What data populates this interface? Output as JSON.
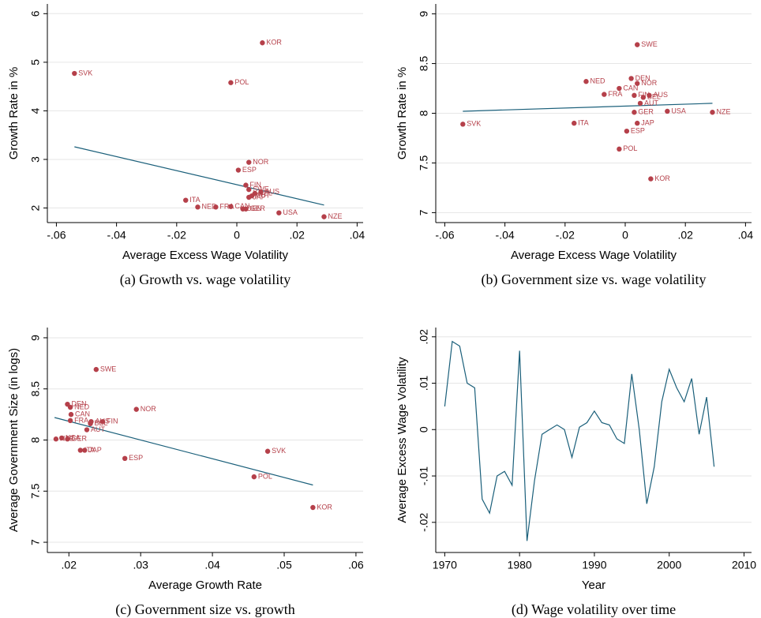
{
  "chart_data": [
    {
      "type": "scatter",
      "caption": "(a) Growth vs. wage volatility",
      "xlabel": "Average Excess Wage Volatility",
      "ylabel": "Growth Rate in %",
      "xlim": [
        -0.063,
        0.042
      ],
      "ylim": [
        1.7,
        6.2
      ],
      "xticks": [
        {
          "value": -0.06,
          "label": "-.06"
        },
        {
          "value": -0.04,
          "label": "-.04"
        },
        {
          "value": -0.02,
          "label": "-.02"
        },
        0,
        {
          "value": 0.02,
          "label": ".02"
        },
        {
          "value": 0.04,
          "label": ".04"
        }
      ],
      "yticks": [
        2,
        3,
        4,
        5,
        6
      ],
      "grid": true,
      "color": "#b5404a",
      "labels": [
        "KOR",
        "SVK",
        "POL",
        "NOR",
        "ESP",
        "FIN",
        "SWE",
        "AUS",
        "BEL",
        "AUT",
        "JAP",
        "ITA",
        "CAN",
        "FRA",
        "NED",
        "GER",
        "DEN",
        "USA",
        "NZE"
      ],
      "x": [
        0.0085,
        -0.054,
        -0.002,
        0.004,
        0.0005,
        0.003,
        0.004,
        0.008,
        0.006,
        0.005,
        0.004,
        -0.017,
        -0.002,
        -0.007,
        -0.013,
        0.003,
        0.002,
        0.014,
        0.029
      ],
      "values": [
        5.4,
        4.77,
        4.58,
        2.94,
        2.78,
        2.47,
        2.38,
        2.33,
        2.3,
        2.25,
        2.22,
        2.16,
        2.03,
        2.02,
        2.02,
        1.98,
        1.98,
        1.9,
        1.82
      ],
      "fit": {
        "color": "#1a5f7a",
        "x": [
          -0.054,
          0.029
        ],
        "values": [
          3.26,
          2.06
        ]
      }
    },
    {
      "type": "scatter",
      "caption": "(b) Government size vs. wage volatility",
      "xlabel": "Average Excess Wage Volatility",
      "ylabel": "Growth Rate in %",
      "xlim": [
        -0.063,
        0.042
      ],
      "ylim": [
        6.9,
        9.1
      ],
      "xticks": [
        {
          "value": -0.06,
          "label": "-.06"
        },
        {
          "value": -0.04,
          "label": "-.04"
        },
        {
          "value": -0.02,
          "label": "-.02"
        },
        0,
        {
          "value": 0.02,
          "label": ".02"
        },
        {
          "value": 0.04,
          "label": ".04"
        }
      ],
      "yticks": [
        7,
        7.5,
        8,
        8.5,
        9
      ],
      "grid": true,
      "color": "#b5404a",
      "labels": [
        "KOR",
        "SVK",
        "POL",
        "NOR",
        "ESP",
        "FIN",
        "SWE",
        "AUS",
        "BEL",
        "AUT",
        "JAP",
        "ITA",
        "CAN",
        "FRA",
        "NED",
        "GER",
        "DEN",
        "USA",
        "NZE"
      ],
      "x": [
        0.0085,
        -0.054,
        -0.002,
        0.004,
        0.0005,
        0.003,
        0.004,
        0.008,
        0.006,
        0.005,
        0.004,
        -0.017,
        -0.002,
        -0.007,
        -0.013,
        0.003,
        0.002,
        0.014,
        0.029
      ],
      "values": [
        7.34,
        7.89,
        7.64,
        8.3,
        7.82,
        8.18,
        8.69,
        8.18,
        8.16,
        8.1,
        7.9,
        7.9,
        8.25,
        8.19,
        8.32,
        8.01,
        8.35,
        8.02,
        8.01
      ],
      "fit": {
        "color": "#1a5f7a",
        "x": [
          -0.054,
          0.029
        ],
        "values": [
          8.02,
          8.1
        ]
      }
    },
    {
      "type": "scatter",
      "caption": "(c) Government size vs. growth",
      "xlabel": "Average Growth Rate",
      "ylabel": "Average Government Size (in logs)",
      "xlim": [
        0.017,
        0.061
      ],
      "ylim": [
        6.9,
        9.1
      ],
      "xticks": [
        {
          "value": 0.02,
          "label": ".02"
        },
        {
          "value": 0.03,
          "label": ".03"
        },
        {
          "value": 0.04,
          "label": ".04"
        },
        {
          "value": 0.05,
          "label": ".05"
        },
        {
          "value": 0.06,
          "label": ".06"
        }
      ],
      "yticks": [
        7,
        7.5,
        8,
        8.5,
        9
      ],
      "grid": true,
      "color": "#b5404a",
      "labels": [
        "KOR",
        "SVK",
        "POL",
        "NOR",
        "ESP",
        "FIN",
        "SWE",
        "AUS",
        "BEL",
        "AUT",
        "JAP",
        "ITA",
        "CAN",
        "FRA",
        "NED",
        "GER",
        "DEN",
        "USA",
        "NZE"
      ],
      "x": [
        0.054,
        0.0477,
        0.0458,
        0.0294,
        0.0278,
        0.0247,
        0.0238,
        0.0231,
        0.023,
        0.0225,
        0.0222,
        0.0216,
        0.0203,
        0.0202,
        0.0202,
        0.0198,
        0.0198,
        0.019,
        0.0182
      ],
      "values": [
        7.34,
        7.89,
        7.64,
        8.3,
        7.82,
        8.18,
        8.69,
        8.18,
        8.16,
        8.1,
        7.9,
        7.9,
        8.25,
        8.19,
        8.32,
        8.01,
        8.35,
        8.02,
        8.01
      ],
      "fit": {
        "color": "#1a5f7a",
        "x": [
          0.018,
          0.054
        ],
        "values": [
          8.22,
          7.56
        ]
      }
    },
    {
      "type": "line",
      "caption": "(d) Wage volatility over time",
      "xlabel": "Year",
      "ylabel": "Average Excess Wage Volatility",
      "xlim": [
        1968.8,
        2011
      ],
      "ylim": [
        -0.0265,
        0.022
      ],
      "xticks": [
        1970,
        1980,
        1990,
        2000,
        2010
      ],
      "yticks": [
        {
          "value": -0.02,
          "label": "-.02"
        },
        {
          "value": -0.01,
          "label": "-.01"
        },
        0,
        {
          "value": 0.01,
          "label": ".01"
        },
        {
          "value": 0.02,
          "label": ".02"
        }
      ],
      "grid": true,
      "color": "#1a5f7a",
      "x": [
        1970,
        1971,
        1972,
        1973,
        1974,
        1975,
        1976,
        1977,
        1978,
        1979,
        1980,
        1981,
        1982,
        1983,
        1984,
        1985,
        1986,
        1987,
        1988,
        1989,
        1990,
        1991,
        1992,
        1993,
        1994,
        1995,
        1996,
        1997,
        1998,
        1999,
        2000,
        2001,
        2002,
        2003,
        2004,
        2005,
        2006
      ],
      "values": [
        0.005,
        0.019,
        0.018,
        0.01,
        0.009,
        -0.015,
        -0.018,
        -0.01,
        -0.009,
        -0.012,
        0.017,
        -0.024,
        -0.011,
        -0.001,
        0,
        0.001,
        0,
        -0.006,
        0.0005,
        0.0015,
        0.004,
        0.0015,
        0.001,
        -0.002,
        -0.003,
        0.012,
        0,
        -0.016,
        -0.008,
        0.006,
        0.013,
        0.009,
        0.006,
        0.011,
        -0.001,
        0.007,
        -0.008
      ]
    }
  ]
}
